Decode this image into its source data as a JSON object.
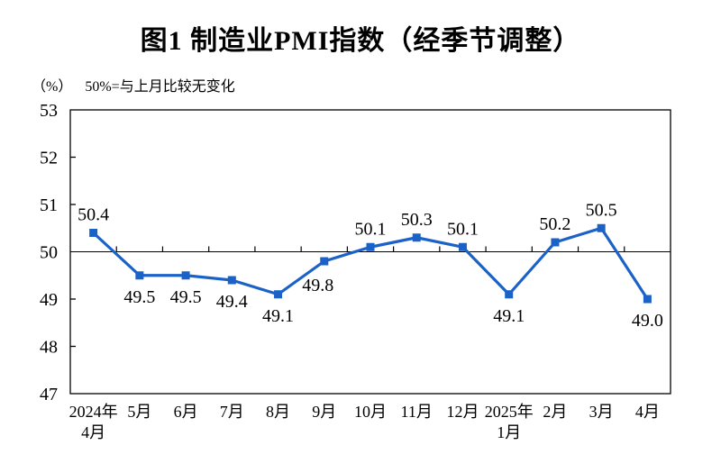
{
  "title": "图1  制造业PMI指数（经季节调整）",
  "subtitle": {
    "unit": "（%）",
    "note": "50%=与上月比较无变化"
  },
  "chart_data": {
    "type": "line",
    "title": "图1  制造业PMI指数（经季节调整）",
    "unit_label": "（%）",
    "reference_note": "50%=与上月比较无变化",
    "categories": [
      [
        "2024年",
        "4月"
      ],
      [
        "5月"
      ],
      [
        "6月"
      ],
      [
        "7月"
      ],
      [
        "8月"
      ],
      [
        "9月"
      ],
      [
        "10月"
      ],
      [
        "11月"
      ],
      [
        "12月"
      ],
      [
        "2025年",
        "1月"
      ],
      [
        "2月"
      ],
      [
        "3月"
      ],
      [
        "4月"
      ]
    ],
    "values": [
      50.4,
      49.5,
      49.5,
      49.4,
      49.1,
      49.8,
      50.1,
      50.3,
      50.1,
      49.1,
      50.2,
      50.5,
      49.0
    ],
    "ylim": [
      47,
      53
    ],
    "yticks": [
      47,
      48,
      49,
      50,
      51,
      52,
      53
    ],
    "reference_line": 50,
    "grid": false,
    "legend": "none",
    "marker": "square",
    "line_color": "#1b62c8",
    "axis_color": "#000000",
    "label_positions": [
      "above",
      "below",
      "below",
      "below",
      "below",
      "below-left",
      "above",
      "above",
      "above",
      "below",
      "above",
      "above",
      "below"
    ]
  }
}
